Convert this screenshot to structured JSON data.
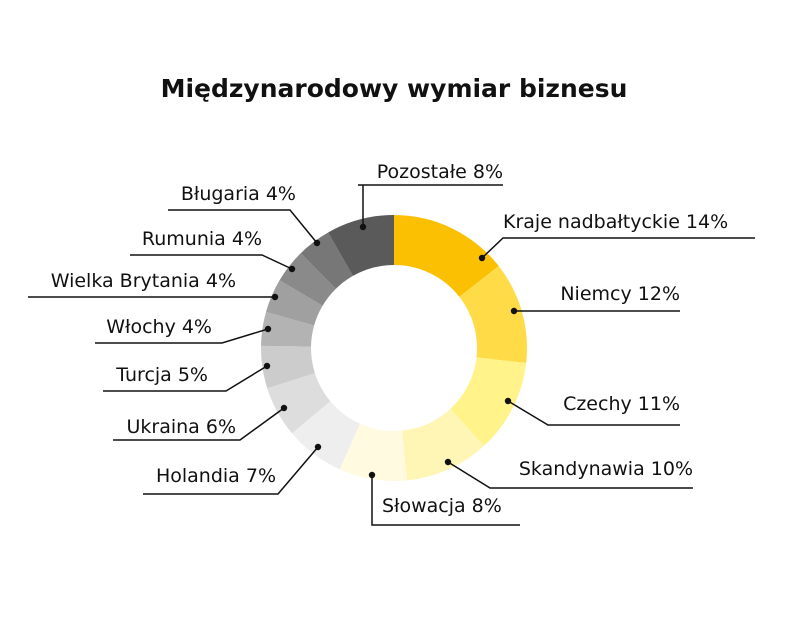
{
  "chart_data": {
    "type": "pie",
    "variant": "donut",
    "title": "Międzynarodowy wymiar biznesu",
    "slices": [
      {
        "label": "Kraje nadbałtyckie 14%",
        "value": 14,
        "color": "#FBC002"
      },
      {
        "label": "Niemcy 12%",
        "value": 12,
        "color": "#FFDB48"
      },
      {
        "label": "Czechy 11%",
        "value": 11,
        "color": "#FFF38A"
      },
      {
        "label": "Skandynawia 10%",
        "value": 10,
        "color": "#FFF5B5"
      },
      {
        "label": "Słowacja 8%",
        "value": 8,
        "color": "#FFFAE0"
      },
      {
        "label": "Holandia 7%",
        "value": 7,
        "color": "#EEEEEE"
      },
      {
        "label": "Ukraina 6%",
        "value": 6,
        "color": "#DDDDDD"
      },
      {
        "label": "Turcja 5%",
        "value": 5,
        "color": "#CCCCCC"
      },
      {
        "label": "Włochy 4%",
        "value": 4,
        "color": "#B3B3B3"
      },
      {
        "label": "Wielka Brytania 4%",
        "value": 4,
        "color": "#A0A0A0"
      },
      {
        "label": "Rumunia 4%",
        "value": 4,
        "color": "#8A8A8A"
      },
      {
        "label": "Bługaria 4%",
        "value": 4,
        "color": "#777777"
      },
      {
        "label": "Pozostałe 8%",
        "value": 8,
        "color": "#5A5A5A"
      }
    ]
  }
}
